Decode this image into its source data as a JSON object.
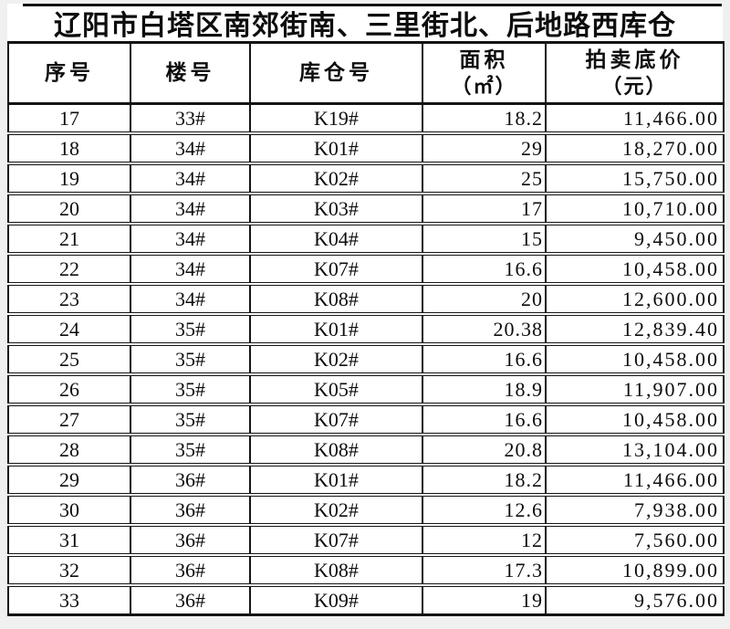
{
  "page": {
    "background_color": "#f0f0f0",
    "sheet_color": "#ffffff",
    "border_color": "#141414",
    "text_color": "#0d0d0d"
  },
  "title": "辽阳市白塔区南郊街南、三里街北、后地路西库仓",
  "table": {
    "columns": [
      {
        "key": "serial",
        "label": "序号"
      },
      {
        "key": "building",
        "label": "楼号"
      },
      {
        "key": "warehouse",
        "label": "库仓号"
      },
      {
        "key": "area",
        "label": "面积",
        "sub": "（㎡）"
      },
      {
        "key": "price",
        "label": "拍卖底价",
        "sub": "（元）"
      }
    ],
    "rows": [
      [
        "17",
        "33#",
        "K19#",
        "18.2",
        "11,466.00"
      ],
      [
        "18",
        "34#",
        "K01#",
        "29",
        "18,270.00"
      ],
      [
        "19",
        "34#",
        "K02#",
        "25",
        "15,750.00"
      ],
      [
        "20",
        "34#",
        "K03#",
        "17",
        "10,710.00"
      ],
      [
        "21",
        "34#",
        "K04#",
        "15",
        "9,450.00"
      ],
      [
        "22",
        "34#",
        "K07#",
        "16.6",
        "10,458.00"
      ],
      [
        "23",
        "34#",
        "K08#",
        "20",
        "12,600.00"
      ],
      [
        "24",
        "35#",
        "K01#",
        "20.38",
        "12,839.40"
      ],
      [
        "25",
        "35#",
        "K02#",
        "16.6",
        "10,458.00"
      ],
      [
        "26",
        "35#",
        "K05#",
        "18.9",
        "11,907.00"
      ],
      [
        "27",
        "35#",
        "K07#",
        "16.6",
        "10,458.00"
      ],
      [
        "28",
        "35#",
        "K08#",
        "20.8",
        "13,104.00"
      ],
      [
        "29",
        "36#",
        "K01#",
        "18.2",
        "11,466.00"
      ],
      [
        "30",
        "36#",
        "K02#",
        "12.6",
        "7,938.00"
      ],
      [
        "31",
        "36#",
        "K07#",
        "12",
        "7,560.00"
      ],
      [
        "32",
        "36#",
        "K08#",
        "17.3",
        "10,899.00"
      ],
      [
        "33",
        "36#",
        "K09#",
        "19",
        "9,576.00"
      ]
    ]
  }
}
